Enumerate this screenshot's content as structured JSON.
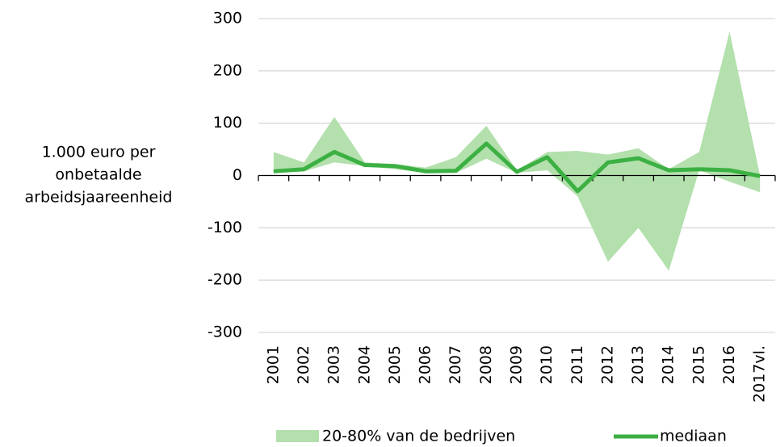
{
  "chart_data": {
    "type": "line",
    "y_label": [
      "1.000 euro per",
      "onbetaalde",
      "arbeidsjaareenheid"
    ],
    "categories": [
      "2001",
      "2002",
      "2003",
      "2004",
      "2005",
      "2006",
      "2007",
      "2008",
      "2009",
      "2010",
      "2011",
      "2012",
      "2013",
      "2014",
      "2015",
      "2016",
      "2017vl."
    ],
    "series": [
      {
        "name": "20-80% van de bedrijven",
        "color": "#b3e0ad",
        "high": [
          45,
          25,
          112,
          25,
          22,
          15,
          35,
          95,
          10,
          45,
          47,
          40,
          52,
          12,
          45,
          275,
          0
        ],
        "low": [
          5,
          8,
          25,
          18,
          12,
          5,
          5,
          32,
          5,
          10,
          -40,
          -165,
          -100,
          -182,
          10,
          -12,
          -32
        ]
      },
      {
        "name": "mediaan",
        "color": "#3cb043",
        "values": [
          8,
          12,
          45,
          20,
          18,
          8,
          9,
          61,
          7,
          35,
          -30,
          25,
          33,
          10,
          12,
          10,
          -1
        ]
      }
    ],
    "ylim": [
      -300,
      300
    ],
    "yticks": [
      -300,
      -200,
      -100,
      0,
      100,
      200,
      300
    ],
    "grid": true
  }
}
